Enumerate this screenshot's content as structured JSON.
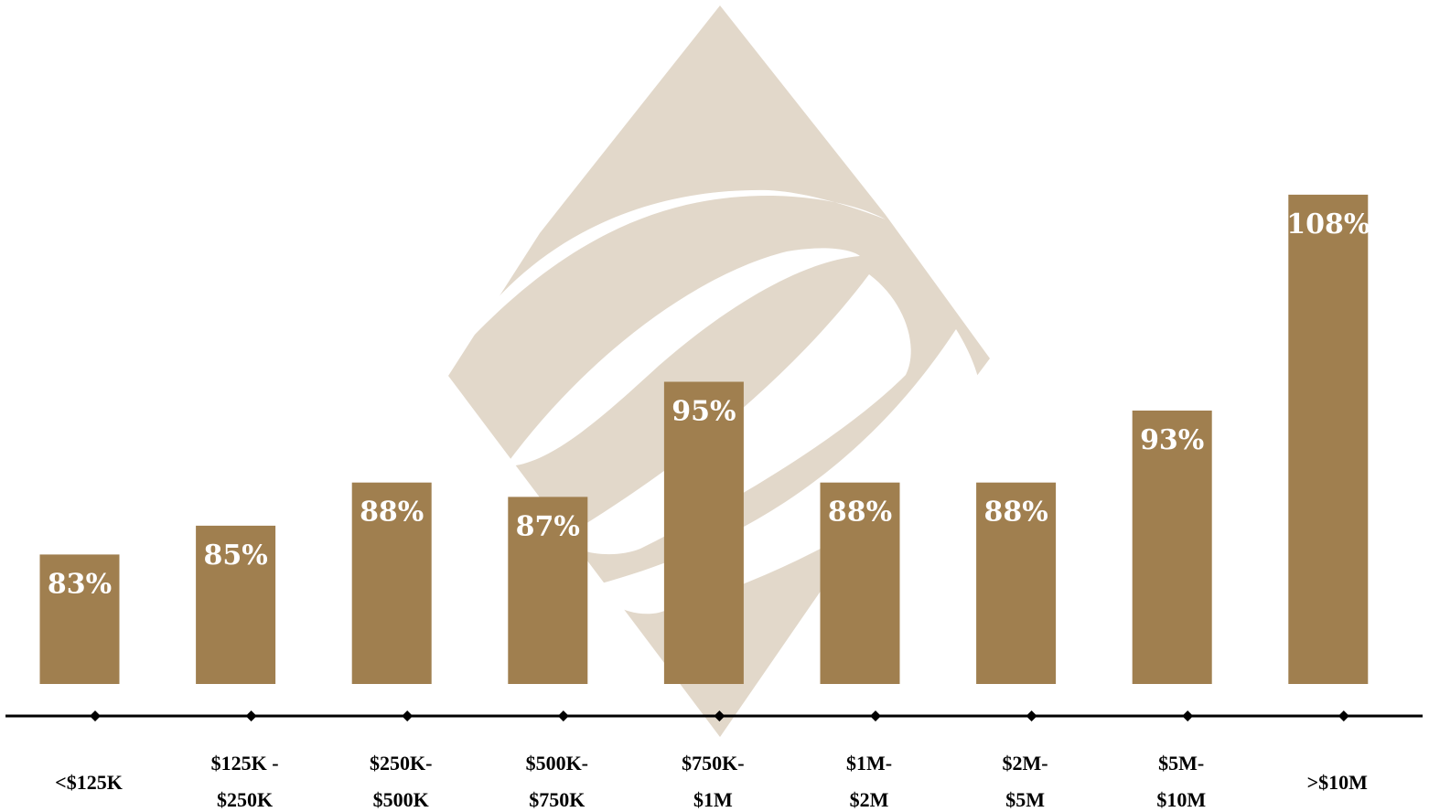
{
  "colors": {
    "bar": "#A07F4F",
    "watermark": "#E2D8CA",
    "axis": "#000000",
    "value_text": "#FFFFFF",
    "category_text": "#000000"
  },
  "chart_data": {
    "type": "bar",
    "title": "",
    "xlabel": "",
    "ylabel": "",
    "categories": [
      [
        "<$125K"
      ],
      [
        "$125K -",
        "$250K"
      ],
      [
        "$250K-",
        "$500K"
      ],
      [
        "$500K-",
        "$750K"
      ],
      [
        "$750K-",
        "$1M"
      ],
      [
        "$1M-",
        "$2M"
      ],
      [
        "$2M-",
        "$5M"
      ],
      [
        "$5M-",
        "$10M"
      ],
      [
        ">$10M"
      ]
    ],
    "values": [
      83,
      85,
      88,
      87,
      95,
      88,
      88,
      93,
      108
    ],
    "value_labels": [
      "83%",
      "85%",
      "88%",
      "87%",
      "95%",
      "88%",
      "88%",
      "93%",
      "108%"
    ],
    "units": "%",
    "ylim": [
      74,
      112
    ],
    "grid": false,
    "legend": "none",
    "axis_markers": "diamond"
  }
}
